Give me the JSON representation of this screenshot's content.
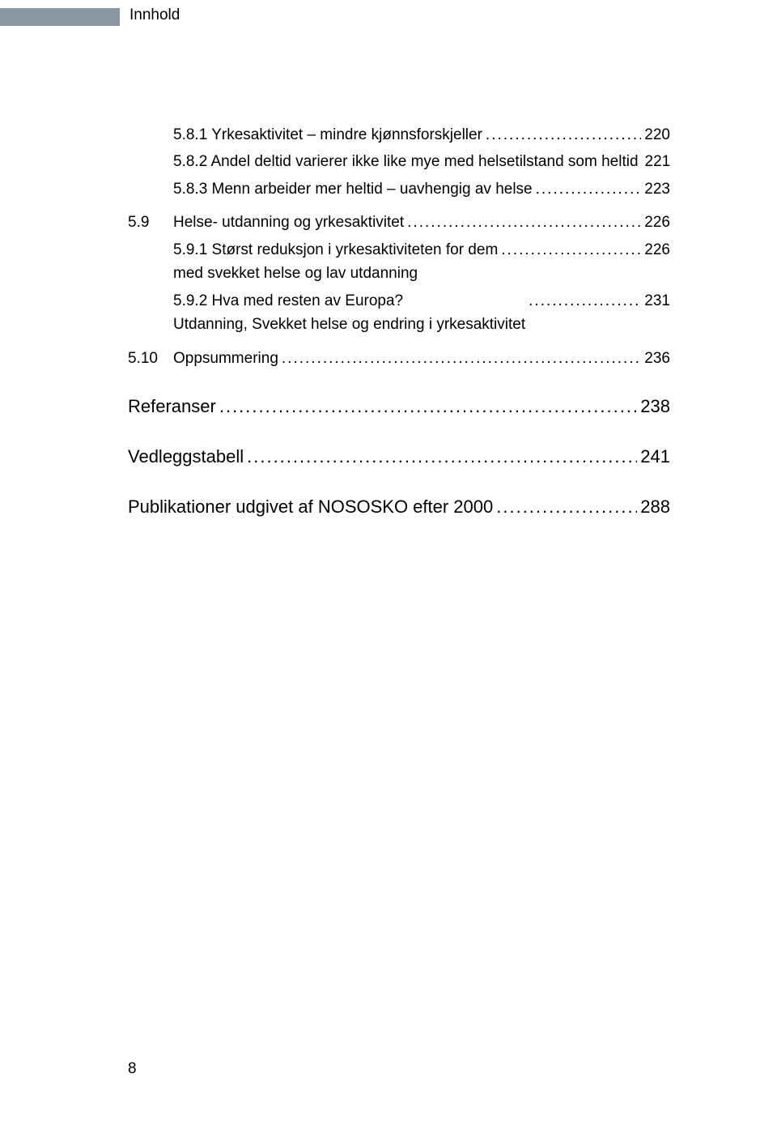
{
  "header": {
    "title": "Innhold"
  },
  "footer": {
    "page_number": "8"
  },
  "colors": {
    "header_bar": "#8a97a3",
    "text": "#000000",
    "background": "#ffffff"
  },
  "typography": {
    "body_fontsize_pt": 14,
    "front_fontsize_pt": 16,
    "font_family": "Trebuchet MS"
  },
  "toc": {
    "entries": [
      {
        "indent": 1,
        "label": "5.8.1 Yrkesaktivitet – mindre kjønnsforskjeller",
        "page": "220"
      },
      {
        "indent": 1,
        "label": "5.8.2 Andel deltid varierer ikke like mye med helsetilstand som heltid",
        "page": "221"
      },
      {
        "indent": 1,
        "label": "5.8.3 Menn arbeider mer heltid – uavhengig av helse",
        "page": "223"
      },
      {
        "section": true,
        "num": "5.9",
        "label": "Helse- utdanning og yrkesaktivitet",
        "page": "226"
      },
      {
        "indent": 1,
        "multiline": true,
        "label": "5.9.1 Størst reduksjon i yrkesaktiviteten for dem\nmed svekket helse og lav utdanning",
        "page": "226"
      },
      {
        "indent": 1,
        "multiline": true,
        "label": "5.9.2 Hva med resten av Europa?\nUtdanning, Svekket helse og endring i yrkesaktivitet",
        "page": "231"
      },
      {
        "section": true,
        "num": "5.10",
        "label": "Oppsummering",
        "page": "236"
      },
      {
        "front": true,
        "label": "Referanser",
        "page": "238"
      },
      {
        "front": true,
        "label": "Vedleggstabell",
        "page": "241"
      },
      {
        "front": true,
        "label": "Publikationer udgivet af NOSOSKO efter 2000",
        "page": "288"
      }
    ]
  }
}
